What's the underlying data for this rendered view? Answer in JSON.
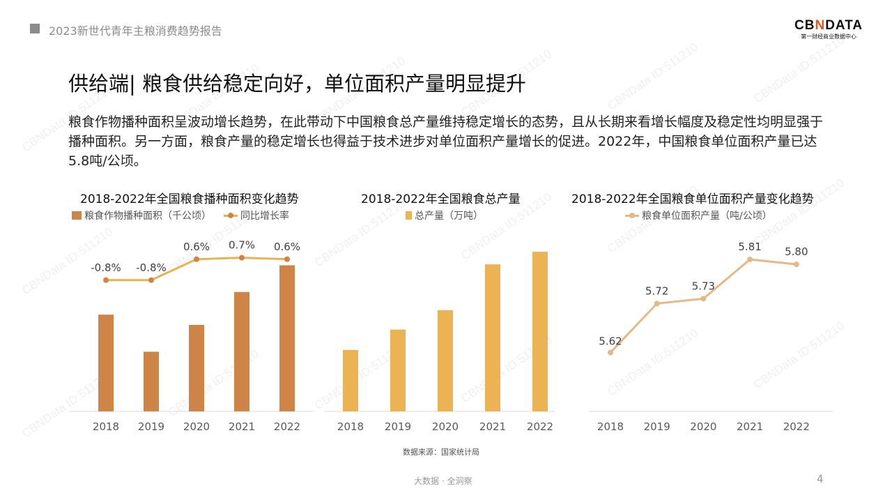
{
  "header": {
    "report_title": "2023新世代青年主粮消费趋势报告",
    "logo_brand_a": "CB",
    "logo_brand_b": "N",
    "logo_brand_c": "DATA",
    "logo_sub": "第一财经商业数据中心"
  },
  "slide": {
    "title": "供给端| 粮食供给稳定向好，单位面积产量明显提升",
    "description": "粮食作物播种面积呈波动增长趋势，在此带动下中国粮食总产量维持稳定增长的态势，且从长期来看增长幅度及稳定性均明显强于播种面积。另一方面，粮食产量的稳定增长也得益于技术进步对单位面积产量增长的促进。2022年，中国粮食单位面积产量已达5.8吨/公顷。"
  },
  "watermark": "CBNData ID:511210",
  "source": "数据来源：国家统计局",
  "footer": {
    "text": "大数据 · 全洞察",
    "page": "4"
  },
  "chart_data": [
    {
      "type": "bar",
      "title": "2018-2022年全国粮食播种面积变化趋势",
      "categories": [
        "2018",
        "2019",
        "2020",
        "2021",
        "2022"
      ],
      "series": [
        {
          "name": "粮食作物播种面积（千公顷）",
          "type": "bar",
          "color": "#cd8446",
          "values": [
            117038,
            116064,
            116768,
            117631,
            118332
          ],
          "ylim": [
            114500,
            119000
          ]
        },
        {
          "name": "同比增长率",
          "type": "line",
          "color": "#e9b24f",
          "values": [
            -0.8,
            -0.8,
            0.6,
            0.7,
            0.6
          ],
          "labels": [
            "-0.8%",
            "-0.8%",
            "0.6%",
            "0.7%",
            "0.6%"
          ],
          "ylim": [
            -9.6,
            1.9
          ]
        }
      ]
    },
    {
      "type": "bar",
      "title": "2018-2022年全国粮食总产量",
      "categories": [
        "2018",
        "2019",
        "2020",
        "2021",
        "2022"
      ],
      "series": [
        {
          "name": "总产量（万吨）",
          "type": "bar",
          "color": "#ebb354",
          "values": [
            65789,
            66384,
            66949,
            68285,
            68653
          ],
          "ylim": [
            64000,
            69000
          ]
        }
      ]
    },
    {
      "type": "line",
      "title": "2018-2022年全国粮食单位面积产量变化趋势",
      "categories": [
        "2018",
        "2019",
        "2020",
        "2021",
        "2022"
      ],
      "series": [
        {
          "name": "粮食单位面积产量（吨/公顷）",
          "type": "line",
          "color": "#e2b987",
          "values": [
            5.62,
            5.72,
            5.73,
            5.81,
            5.8
          ],
          "labels": [
            "5.62",
            "5.72",
            "5.73",
            "5.81",
            "5.80"
          ],
          "ylim": [
            5.5,
            5.85
          ]
        }
      ]
    }
  ]
}
